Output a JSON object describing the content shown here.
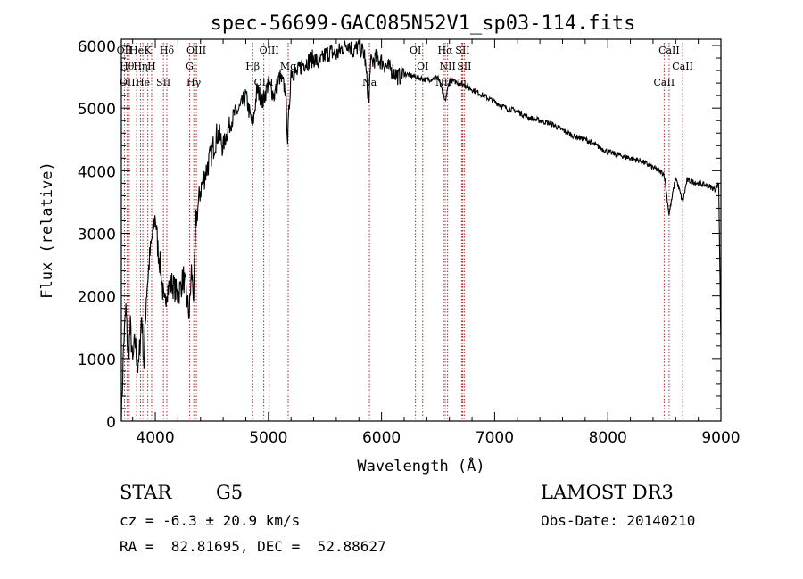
{
  "chart_data": {
    "type": "line",
    "title": "spec-56699-GAC085N52V1_sp03-114.fits",
    "xlabel": "Wavelength (Å)",
    "ylabel": "Flux (relative)",
    "xlim": [
      3700,
      9000
    ],
    "ylim": [
      0,
      6100
    ],
    "xticks": [
      4000,
      5000,
      6000,
      7000,
      8000,
      9000
    ],
    "yticks": [
      0,
      1000,
      2000,
      3000,
      4000,
      5000,
      6000
    ],
    "series": [
      {
        "name": "spectrum",
        "color": "#000000",
        "x": [
          3700,
          3720,
          3740,
          3760,
          3780,
          3800,
          3820,
          3850,
          3880,
          3900,
          3920,
          3950,
          3970,
          4000,
          4020,
          4050,
          4080,
          4100,
          4150,
          4200,
          4250,
          4300,
          4320,
          4340,
          4360,
          4400,
          4450,
          4500,
          4550,
          4600,
          4650,
          4700,
          4750,
          4800,
          4860,
          4900,
          4950,
          5000,
          5050,
          5100,
          5150,
          5170,
          5200,
          5250,
          5300,
          5350,
          5400,
          5450,
          5500,
          5550,
          5600,
          5650,
          5700,
          5750,
          5800,
          5850,
          5890,
          5900,
          5950,
          6000,
          6050,
          6100,
          6150,
          6200,
          6300,
          6400,
          6500,
          6563,
          6600,
          6700,
          6800,
          6900,
          7000,
          7100,
          7200,
          7300,
          7400,
          7500,
          7600,
          7700,
          7800,
          7900,
          8000,
          8100,
          8200,
          8300,
          8400,
          8498,
          8542,
          8600,
          8662,
          8700,
          8800,
          8900,
          8950,
          8980,
          9000
        ],
        "y": [
          0,
          1200,
          1800,
          1000,
          1500,
          900,
          1300,
          800,
          1700,
          900,
          2000,
          2600,
          2900,
          3300,
          2800,
          2400,
          1800,
          2100,
          2200,
          2000,
          2300,
          1700,
          2400,
          2000,
          3200,
          3700,
          4000,
          4300,
          4600,
          4400,
          4700,
          4900,
          5000,
          5200,
          4700,
          5300,
          5100,
          5400,
          5200,
          5500,
          5300,
          4500,
          5600,
          5550,
          5700,
          5750,
          5800,
          5700,
          5850,
          5900,
          5850,
          5950,
          6050,
          5900,
          6000,
          5850,
          5050,
          5700,
          5800,
          5750,
          5650,
          5600,
          5500,
          5550,
          5500,
          5450,
          5500,
          5100,
          5450,
          5400,
          5300,
          5200,
          5100,
          5000,
          4950,
          4850,
          4800,
          4750,
          4650,
          4550,
          4500,
          4400,
          4300,
          4250,
          4200,
          4150,
          4050,
          3950,
          3300,
          3900,
          3500,
          3850,
          3800,
          3750,
          3700,
          3800,
          1200
        ]
      }
    ],
    "lines": [
      {
        "wl": 3727,
        "label": "OII"
      },
      {
        "wl": 3750,
        "label": "Hθ"
      },
      {
        "wl": 3770,
        "label": "OIII"
      },
      {
        "wl": 3835,
        "label": "He"
      },
      {
        "wl": 3869,
        "label": "Hη"
      },
      {
        "wl": 3890,
        "label": "He"
      },
      {
        "wl": 3934,
        "label": "K"
      },
      {
        "wl": 3968,
        "label": "H"
      },
      {
        "wl": 4072,
        "label": "SII"
      },
      {
        "wl": 4102,
        "label": "Hδ"
      },
      {
        "wl": 4304,
        "label": "G"
      },
      {
        "wl": 4340,
        "label": "Hγ"
      },
      {
        "wl": 4363,
        "label": "OIII"
      },
      {
        "wl": 4861,
        "label": "Hβ"
      },
      {
        "wl": 4959,
        "label": "OIII"
      },
      {
        "wl": 5007,
        "label": "OIII"
      },
      {
        "wl": 5175,
        "label": "Mg"
      },
      {
        "wl": 5893,
        "label": "Na"
      },
      {
        "wl": 6300,
        "label": "OI"
      },
      {
        "wl": 6364,
        "label": "OI"
      },
      {
        "wl": 6548,
        "label": "NII"
      },
      {
        "wl": 6563,
        "label": "Hα"
      },
      {
        "wl": 6584,
        "label": "NII"
      },
      {
        "wl": 6708,
        "label": "Li"
      },
      {
        "wl": 6717,
        "label": "SII"
      },
      {
        "wl": 6731,
        "label": "SII"
      },
      {
        "wl": 8498,
        "label": "CaII"
      },
      {
        "wl": 8542,
        "label": "CaII"
      },
      {
        "wl": 8662,
        "label": "CaII"
      }
    ],
    "line_color": "#b22222"
  },
  "info": {
    "object_class": "STAR",
    "subclass": "G5",
    "survey": "LAMOST DR3",
    "cz": "cz = -6.3 ± 20.9 km/s",
    "obs_date": "Obs-Date: 20140210",
    "radec": "RA =  82.81695, DEC =  52.88627"
  }
}
